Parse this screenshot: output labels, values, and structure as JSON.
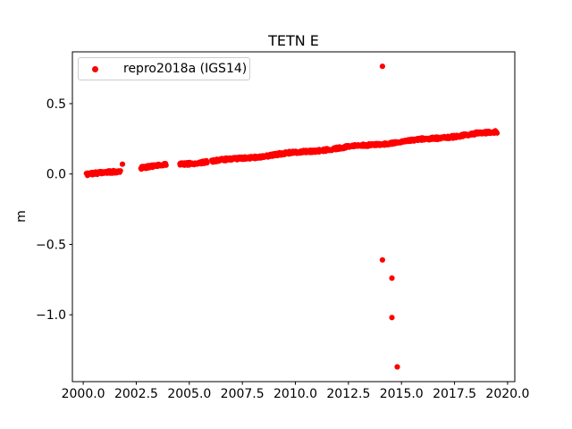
{
  "chart_data": {
    "type": "scatter",
    "title": "TETN E",
    "xlabel": "",
    "ylabel": "m",
    "legend_position": "upper left",
    "grid": false,
    "xlim": [
      1999.49,
      2020.34
    ],
    "ylim": [
      -1.475,
      0.868
    ],
    "xticks": [
      2000.0,
      2002.5,
      2005.0,
      2007.5,
      2010.0,
      2012.5,
      2015.0,
      2017.5,
      2020.0
    ],
    "yticks": [
      0.5,
      0.0,
      -0.5,
      -1.0
    ],
    "axis_color": "#000000",
    "series": [
      {
        "name": "repro2018a (IGS14)",
        "color": "#ff0000",
        "trend_segments": [
          {
            "x_start": 2000.15,
            "x_end": 2001.75,
            "y_start": -0.005,
            "y_end": 0.02
          },
          {
            "x_start": 2002.72,
            "x_end": 2003.9,
            "y_start": 0.045,
            "y_end": 0.065
          },
          {
            "x_start": 2004.55,
            "x_end": 2005.85,
            "y_start": 0.07,
            "y_end": 0.088
          },
          {
            "x_start": 2006.05,
            "x_end": 2019.5,
            "y_start": 0.09,
            "y_end": 0.3
          }
        ],
        "outliers": [
          {
            "x": 2001.85,
            "y": 0.07
          },
          {
            "x": 2014.1,
            "y": 0.765
          },
          {
            "x": 2014.1,
            "y": -0.61
          },
          {
            "x": 2014.55,
            "y": -0.74
          },
          {
            "x": 2014.55,
            "y": -1.02
          },
          {
            "x": 2014.8,
            "y": -1.37
          }
        ]
      }
    ]
  }
}
